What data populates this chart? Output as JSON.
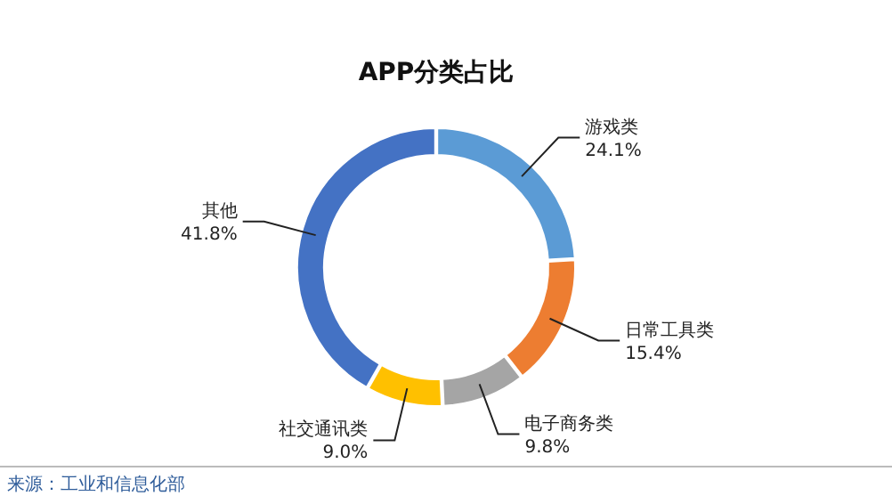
{
  "chart_data": {
    "type": "donut",
    "title": "APP分类占比",
    "categories": [
      "游戏类",
      "日常工具类",
      "电子商务类",
      "社交通讯类",
      "其他"
    ],
    "values": [
      24.1,
      15.4,
      9.8,
      9.0,
      41.8
    ],
    "colors": [
      "#5b9bd5",
      "#ed7d31",
      "#a5a5a5",
      "#ffc000",
      "#4472c4"
    ],
    "value_labels": [
      "24.1%",
      "15.4%",
      "9.8%",
      "9.0%",
      "41.8%"
    ],
    "legend": false,
    "annotations": [
      "来源：工业和信息化部"
    ]
  }
}
